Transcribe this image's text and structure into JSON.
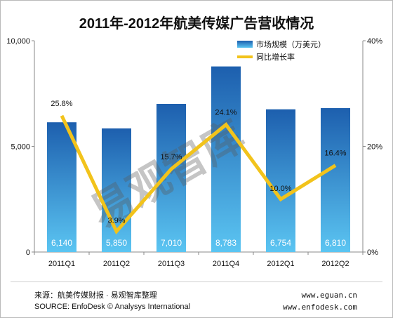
{
  "colors": {
    "bar_top": "#1d5fae",
    "bar_bottom": "#5bc5f2",
    "line": "#f2c31b",
    "axis": "#8a8a8a",
    "watermark": "#5a5a5a"
  },
  "watermark_text": "易观智库",
  "footer": {
    "source_cn": "来源：航美传媒财报 · 易观智库整理",
    "source_en": "SOURCE: EnfoDesk © Analysys International",
    "url1": "www.eguan.cn",
    "url2": "www.enfodesk.com"
  },
  "chart_data": {
    "type": "bar",
    "title": "2011年-2012年航美传媒广告营收情况",
    "categories": [
      "2011Q1",
      "2011Q2",
      "2011Q3",
      "2011Q4",
      "2012Q1",
      "2012Q2"
    ],
    "series": [
      {
        "name": "市场规模（万美元）",
        "type": "bar",
        "axis": "left",
        "values": [
          6140,
          5850,
          7010,
          8783,
          6754,
          6810
        ],
        "labels": [
          "6,140",
          "5,850",
          "7,010",
          "8,783",
          "6,754",
          "6,810"
        ]
      },
      {
        "name": "同比增长率",
        "type": "line",
        "axis": "right",
        "values": [
          25.8,
          3.9,
          15.7,
          24.1,
          10.0,
          16.4
        ],
        "labels": [
          "25.8%",
          "3.9%",
          "15.7%",
          "24.1%",
          "10.0%",
          "16.4%"
        ]
      }
    ],
    "y_left": {
      "ylim": [
        0,
        10000
      ],
      "ticks": [
        0,
        5000,
        10000
      ],
      "tick_labels": [
        "0",
        "5,000",
        "10,000"
      ]
    },
    "y_right": {
      "ylim": [
        0,
        40
      ],
      "ticks": [
        0,
        20,
        40
      ],
      "tick_labels": [
        "0%",
        "20%",
        "40%"
      ]
    },
    "legend_position": "top-right",
    "grid": false
  }
}
